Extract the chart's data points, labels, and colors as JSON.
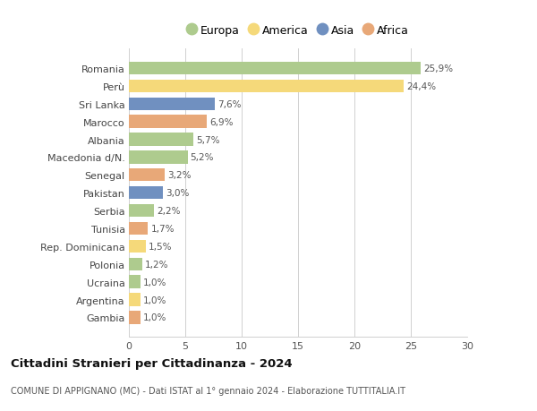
{
  "countries": [
    "Romania",
    "Perù",
    "Sri Lanka",
    "Marocco",
    "Albania",
    "Macedonia d/N.",
    "Senegal",
    "Pakistan",
    "Serbia",
    "Tunisia",
    "Rep. Dominicana",
    "Polonia",
    "Ucraina",
    "Argentina",
    "Gambia"
  ],
  "values": [
    25.9,
    24.4,
    7.6,
    6.9,
    5.7,
    5.2,
    3.2,
    3.0,
    2.2,
    1.7,
    1.5,
    1.2,
    1.0,
    1.0,
    1.0
  ],
  "labels": [
    "25,9%",
    "24,4%",
    "7,6%",
    "6,9%",
    "5,7%",
    "5,2%",
    "3,2%",
    "3,0%",
    "2,2%",
    "1,7%",
    "1,5%",
    "1,2%",
    "1,0%",
    "1,0%",
    "1,0%"
  ],
  "continents": [
    "Europa",
    "America",
    "Asia",
    "Africa",
    "Europa",
    "Europa",
    "Africa",
    "Asia",
    "Europa",
    "Africa",
    "America",
    "Europa",
    "Europa",
    "America",
    "Africa"
  ],
  "colors": {
    "Europa": "#aecb8e",
    "America": "#f5d97a",
    "Asia": "#7090c0",
    "Africa": "#e8a878"
  },
  "legend_order": [
    "Europa",
    "America",
    "Asia",
    "Africa"
  ],
  "title": "Cittadini Stranieri per Cittadinanza - 2024",
  "subtitle": "COMUNE DI APPIGNANO (MC) - Dati ISTAT al 1° gennaio 2024 - Elaborazione TUTTITALIA.IT",
  "xlim": [
    0,
    30
  ],
  "xticks": [
    0,
    5,
    10,
    15,
    20,
    25,
    30
  ],
  "background_color": "#ffffff",
  "grid_color": "#d0d0d0"
}
